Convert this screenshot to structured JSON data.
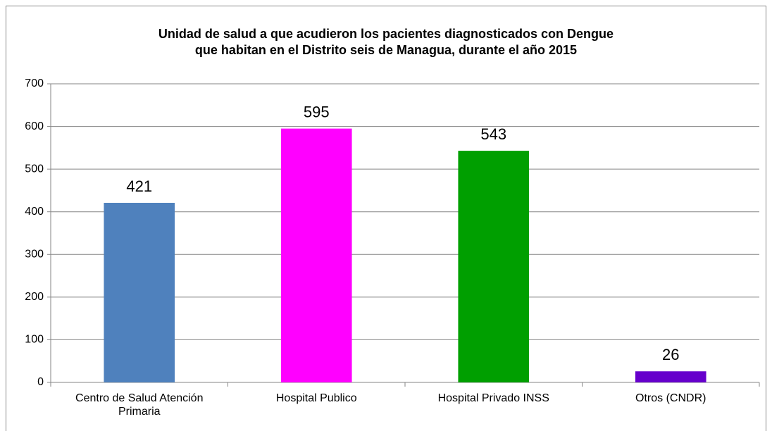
{
  "chart_data": {
    "type": "bar",
    "title": [
      "Unidad de salud a que acudieron los pacientes diagnosticados con Dengue",
      "que habitan en el Distrito seis de Managua, durante el año 2015"
    ],
    "categories": [
      "Centro de Salud Atención Primaria",
      "Hospital Publico",
      "Hospital Privado INSS",
      "Otros (CNDR)"
    ],
    "values": [
      421,
      595,
      543,
      26
    ],
    "colors": [
      "#4f81bd",
      "#ff00ff",
      "#009f00",
      "#6600cc"
    ],
    "ylim": [
      0,
      700
    ],
    "yticks": [
      0,
      100,
      200,
      300,
      400,
      500,
      600,
      700
    ],
    "grid": true
  }
}
